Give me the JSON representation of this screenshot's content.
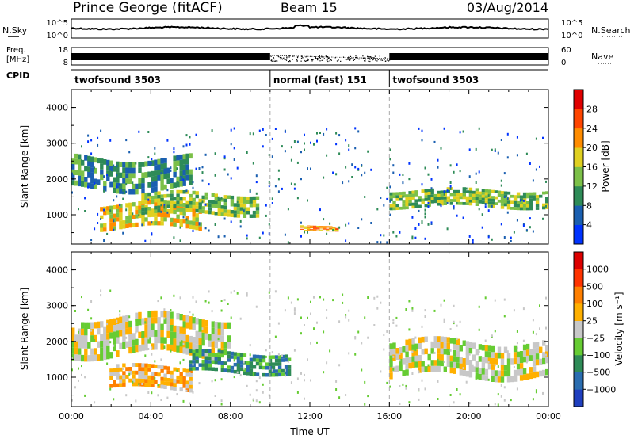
{
  "header": {
    "station": "Prince George (fitACF)",
    "beam": "Beam 15",
    "date": "03/Aug/2014"
  },
  "panels": {
    "noise": {
      "left_label": "N.Sky",
      "right_label": "N.Search",
      "left_ticks": [
        "10^5",
        "10^0"
      ],
      "right_ticks": [
        "10^5",
        "10^0"
      ]
    },
    "freq": {
      "left_label_1": "Freq.",
      "left_label_2": "[MHz]",
      "right_label": "Nave",
      "left_ticks": [
        "18",
        "8"
      ],
      "right_ticks": [
        "60",
        "0"
      ]
    },
    "cpid": {
      "label": "CPID",
      "segments": [
        {
          "name": "twofsound 3503",
          "start_h": 0,
          "end_h": 10
        },
        {
          "name": "normal (fast) 151",
          "start_h": 10,
          "end_h": 16
        },
        {
          "name": "twofsound 3503",
          "start_h": 16,
          "end_h": 24
        }
      ]
    }
  },
  "chart_data": [
    {
      "type": "heatmap",
      "title": "",
      "ylabel": "Slant Range [km]",
      "xlabel": "Time UT",
      "ylim": [
        180,
        4500
      ],
      "yticks": [
        "1000",
        "2000",
        "3000",
        "4000"
      ],
      "xticks": [
        "00:00",
        "04:00",
        "08:00",
        "12:00",
        "16:00",
        "20:00",
        "00:00"
      ],
      "colorbar": {
        "label": "Power [dB]",
        "ticks": [
          "4",
          "8",
          "12",
          "16",
          "20",
          "24",
          "28"
        ],
        "colors": [
          "#0033ff",
          "#1a5fb0",
          "#2e8b57",
          "#7cc048",
          "#e0d020",
          "#ff8c00",
          "#ff4500",
          "#e00000"
        ]
      },
      "regions": [
        {
          "t0": 0,
          "t1": 6,
          "r0": 1700,
          "r1": 2600,
          "level": 2
        },
        {
          "t0": 1.5,
          "t1": 6.5,
          "r0": 600,
          "r1": 1300,
          "level": 4
        },
        {
          "t0": 3.5,
          "t1": 9.5,
          "r0": 1000,
          "r1": 1600,
          "level": 3
        },
        {
          "t0": 11.5,
          "t1": 13.5,
          "r0": 550,
          "r1": 700,
          "level": 5
        },
        {
          "t0": 16,
          "t1": 24,
          "r0": 1200,
          "r1": 1700,
          "level": 3
        }
      ]
    },
    {
      "type": "heatmap",
      "title": "",
      "ylabel": "Slant Range [km]",
      "xlabel": "Time UT",
      "ylim": [
        180,
        4500
      ],
      "yticks": [
        "1000",
        "2000",
        "3000",
        "4000"
      ],
      "xticks": [
        "00:00",
        "04:00",
        "08:00",
        "12:00",
        "16:00",
        "20:00",
        "00:00"
      ],
      "colorbar": {
        "label": "Velocity [m s⁻¹]",
        "ticks": [
          "1000",
          "500",
          "100",
          "25",
          "−25",
          "−100",
          "−500",
          "−1000"
        ],
        "colors": [
          "#1f3fbf",
          "#2a6db0",
          "#2e8b57",
          "#66cc33",
          "#c8c8c8",
          "#ffb000",
          "#ff7f00",
          "#ff3300",
          "#dd0000"
        ]
      },
      "regions": [
        {
          "t0": 0,
          "t1": 8,
          "r0": 1600,
          "r1": 2700,
          "level": 4
        },
        {
          "t0": 2,
          "t1": 6,
          "r0": 650,
          "r1": 1300,
          "level": 5
        },
        {
          "t0": 6,
          "t1": 11,
          "r0": 1100,
          "r1": 1700,
          "level": 2
        },
        {
          "t0": 16,
          "t1": 24,
          "r0": 1000,
          "r1": 2000,
          "level": 4
        }
      ]
    }
  ]
}
